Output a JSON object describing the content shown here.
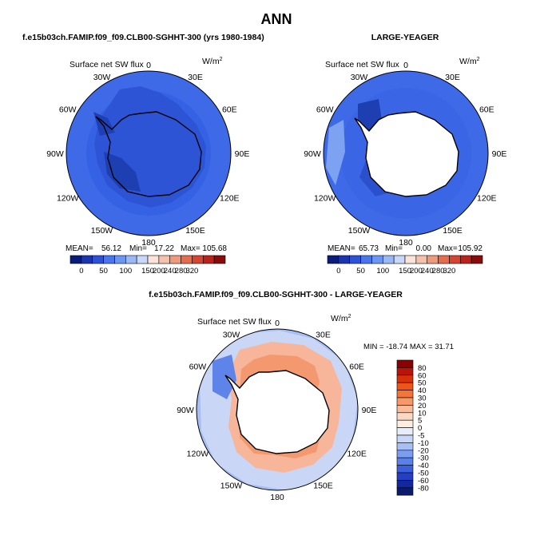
{
  "chart_data": [
    {
      "type": "heatmap",
      "projection": "south-polar-stereographic",
      "title": "f.e15b03ch.FAMIP.f09_f09.CLB00-SGHHT-300 (yrs 1980-1984)",
      "map_title": "Surface net SW flux",
      "units_base": "W/m",
      "units_exp": "2",
      "longitude_labels": [
        "0",
        "30E",
        "60E",
        "90E",
        "120E",
        "150E",
        "180",
        "150W",
        "120W",
        "90W",
        "60W",
        "30W"
      ],
      "stats": {
        "mean_label": "MEAN=",
        "mean": "56.12",
        "min_label": "Min=",
        "min": "17.22",
        "max_label": "Max=",
        "max": "105.68"
      },
      "colorbar_ticks": [
        "0",
        "50",
        "100",
        "150",
        "200",
        "240",
        "280",
        "320"
      ],
      "colorbar_colors": [
        "#0a1c7a",
        "#1a35b0",
        "#2d52d8",
        "#4a75ec",
        "#6d96f3",
        "#9bb8f6",
        "#c9d7f8",
        "#fbe3d8",
        "#f6c1aa",
        "#ef9a7a",
        "#e56d4e",
        "#d54531",
        "#b9221d",
        "#8b0a0a"
      ]
    },
    {
      "type": "heatmap",
      "projection": "south-polar-stereographic",
      "title": "LARGE-YEAGER",
      "map_title": "Surface net SW flux",
      "units_base": "W/m",
      "units_exp": "2",
      "longitude_labels": [
        "0",
        "30E",
        "60E",
        "90E",
        "120E",
        "150E",
        "180",
        "150W",
        "120W",
        "90W",
        "60W",
        "30W"
      ],
      "stats": {
        "mean_label": "MEAN=",
        "mean": "65.73",
        "min_label": "Min=",
        "min": "0.00",
        "max_label": "Max=",
        "max": "105.92"
      },
      "colorbar_ticks": [
        "0",
        "50",
        "100",
        "150",
        "200",
        "240",
        "280",
        "320"
      ],
      "colorbar_colors": [
        "#0a1c7a",
        "#1a35b0",
        "#2d52d8",
        "#4a75ec",
        "#6d96f3",
        "#9bb8f6",
        "#c9d7f8",
        "#fbe3d8",
        "#f6c1aa",
        "#ef9a7a",
        "#e56d4e",
        "#d54531",
        "#b9221d",
        "#8b0a0a"
      ]
    },
    {
      "type": "heatmap",
      "projection": "south-polar-stereographic",
      "title": "f.e15b03ch.FAMIP.f09_f09.CLB00-SGHHT-300 - LARGE-YEAGER",
      "map_title": "Surface net SW flux",
      "units_base": "W/m",
      "units_exp": "2",
      "longitude_labels": [
        "0",
        "30E",
        "60E",
        "90E",
        "120E",
        "150E",
        "180",
        "150W",
        "120W",
        "90W",
        "60W",
        "30W"
      ],
      "stats_text": "MIN = -18.74  MAX =  31.71",
      "colorbar_labels": [
        "80",
        "60",
        "50",
        "40",
        "30",
        "20",
        "10",
        "5",
        "0",
        "-5",
        "-10",
        "-20",
        "-30",
        "-40",
        "-50",
        "-60",
        "-80"
      ],
      "colorbar_colors": [
        "#8b0000",
        "#b81408",
        "#d9300a",
        "#ef5418",
        "#f4743a",
        "#f79868",
        "#f9bb98",
        "#fbd8c2",
        "#fdece0",
        "#e7eefa",
        "#c9d7f7",
        "#a7bff4",
        "#7b9df0",
        "#5a80ea",
        "#3a60de",
        "#2440c2",
        "#12289c",
        "#0a1a6e"
      ]
    }
  ],
  "figure": {
    "title": "ANN"
  }
}
